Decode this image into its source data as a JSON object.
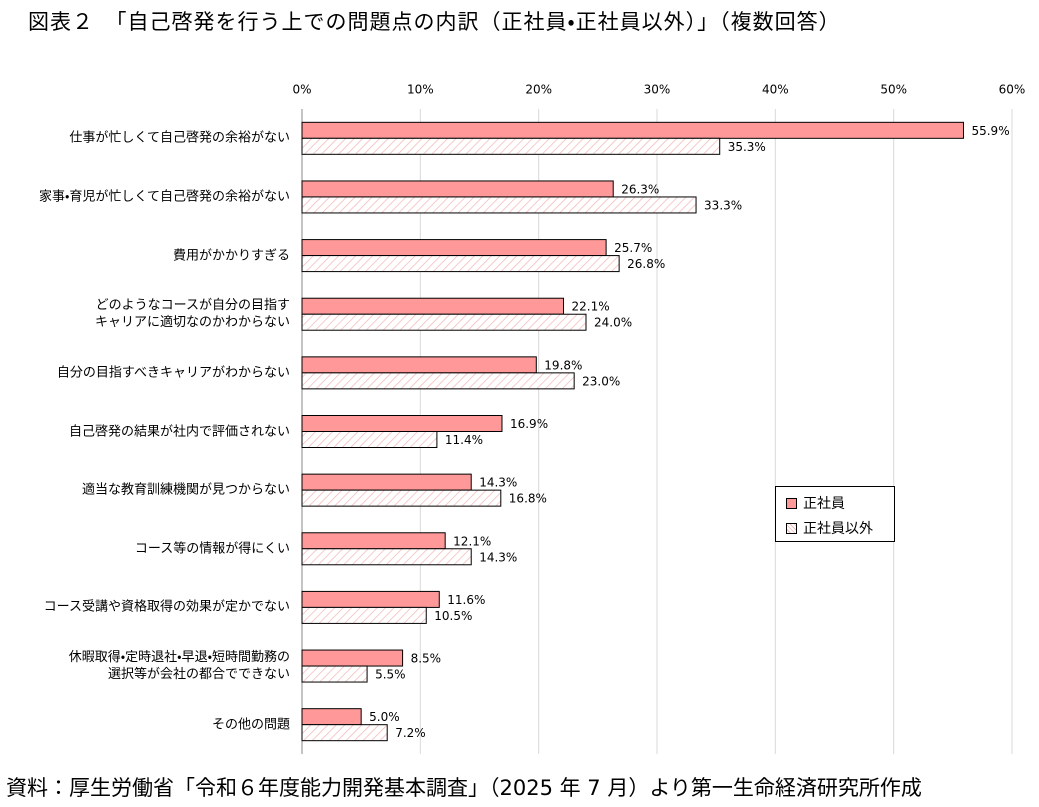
{
  "chart_data": {
    "type": "bar",
    "orientation": "horizontal",
    "title": "図表２　「自己啓発を行う上での問題点の内訳（正社員・正社員以外）」（複数回答）",
    "source": "資料：厚生労働省「令和６年度能力開発基本調査」（2025 年 7 月）より第一生命経済研究所作成",
    "categories": [
      "仕事が忙しくて自己啓発の余裕がない",
      "家事・育児が忙しくて自己啓発の余裕がない",
      "費用がかかりすぎる",
      "どのようなコースが自分の目指す\nキャリアに適切なのかわからない",
      "自分の目指すべきキャリアがわからない",
      "自己啓発の結果が社内で評価されない",
      "適当な教育訓練機関が見つからない",
      "コース等の情報が得にくい",
      "コース受講や資格取得の効果が定かでない",
      "休暇取得・定時退社・早退・短時間勤務の\n選択等が会社の都合でできない",
      "その他の問題"
    ],
    "series": [
      {
        "name": "正社員",
        "color": "#ff9999",
        "hatch": false,
        "values": [
          55.9,
          26.3,
          25.7,
          22.1,
          19.8,
          16.9,
          14.3,
          12.1,
          11.6,
          8.5,
          5.0
        ],
        "value_labels": [
          "55.9%",
          "26.3%",
          "25.7%",
          "22.1%",
          "19.8%",
          "16.9%",
          "14.3%",
          "12.1%",
          "11.6%",
          "8.5%",
          "5.0%"
        ]
      },
      {
        "name": "正社員以外",
        "color": "#ffffff",
        "hatch": true,
        "values": [
          35.3,
          33.3,
          26.8,
          24.0,
          23.0,
          11.4,
          16.8,
          14.3,
          10.5,
          5.5,
          7.2
        ],
        "value_labels": [
          "35.3%",
          "33.3%",
          "26.8%",
          "24.0%",
          "23.0%",
          "11.4%",
          "16.8%",
          "14.3%",
          "10.5%",
          "5.5%",
          "7.2%"
        ]
      }
    ],
    "xlim": [
      0,
      60
    ],
    "xticks": [
      {
        "value": 0,
        "label": "0%"
      },
      {
        "value": 10,
        "label": "10%"
      },
      {
        "value": 20,
        "label": "20%"
      },
      {
        "value": 30,
        "label": "30%"
      },
      {
        "value": 40,
        "label": "40%"
      },
      {
        "value": 50,
        "label": "50%"
      },
      {
        "value": 60,
        "label": "60%"
      }
    ],
    "grid": true,
    "legend": "right"
  }
}
